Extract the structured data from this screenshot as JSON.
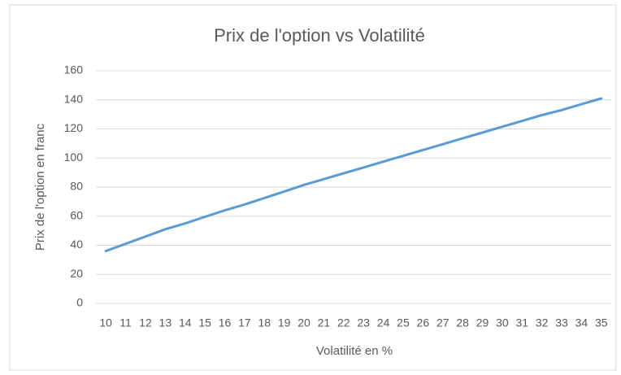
{
  "chart_data": {
    "type": "line",
    "title": "Prix de l'option vs Volatilité",
    "x_label": "Volatilité en %",
    "y_label": "Prix de l'option en franc",
    "categories": [
      "10",
      "11",
      "12",
      "13",
      "14",
      "15",
      "16",
      "17",
      "18",
      "19",
      "20",
      "21",
      "22",
      "23",
      "24",
      "25",
      "26",
      "27",
      "28",
      "29",
      "30",
      "31",
      "32",
      "33",
      "34",
      "35"
    ],
    "series": [
      {
        "name": "Prix de l'option",
        "color": "#5b9bd5",
        "values": [
          36,
          41,
          46,
          51,
          55,
          59.5,
          64,
          68,
          72.5,
          77,
          81.5,
          85.5,
          89.5,
          93.5,
          97.5,
          101.5,
          105.5,
          109.5,
          113.5,
          117.5,
          121.5,
          125.5,
          129.5,
          133,
          137,
          141
        ]
      }
    ],
    "ylim": [
      0,
      160
    ],
    "yticks": [
      0,
      20,
      40,
      60,
      80,
      100,
      120,
      140,
      160
    ],
    "grid": true
  }
}
